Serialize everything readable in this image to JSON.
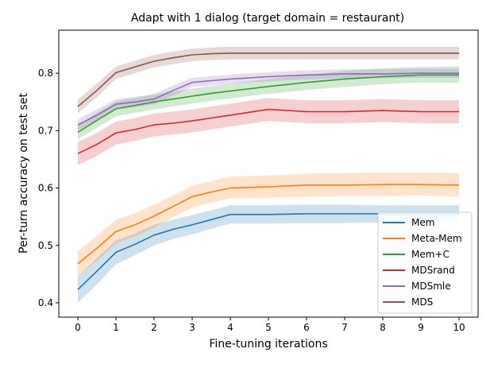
{
  "chart_data": {
    "type": "line",
    "title": "Adapt with 1 dialog (target domain = restaurant)",
    "xlabel": "Fine-tuning iterations",
    "ylabel": "Per-turn accuracy on test set",
    "xlim": [
      -0.5,
      10.5
    ],
    "ylim": [
      0.375,
      0.875
    ],
    "xticks": [
      0,
      1,
      2,
      3,
      4,
      5,
      6,
      7,
      8,
      9,
      10
    ],
    "yticks": [
      0.4,
      0.5,
      0.6,
      0.7,
      0.8
    ],
    "ytick_labels": [
      "0.4",
      "0.5",
      "0.6",
      "0.7",
      "0.8"
    ],
    "grid": false,
    "legend_position": "lower-right",
    "x": [
      0,
      0.5,
      1,
      1.5,
      2,
      2.5,
      3,
      3.5,
      4,
      5,
      6,
      7,
      8,
      9,
      10
    ],
    "series": [
      {
        "name": "Mem",
        "color": "#1f77b4",
        "values": [
          0.423,
          0.455,
          0.488,
          0.502,
          0.518,
          0.528,
          0.536,
          0.545,
          0.554,
          0.554,
          0.555,
          0.555,
          0.555,
          0.555,
          0.555
        ],
        "lower": [
          0.4,
          0.432,
          0.467,
          0.483,
          0.5,
          0.511,
          0.519,
          0.529,
          0.538,
          0.538,
          0.539,
          0.539,
          0.54,
          0.54,
          0.54
        ],
        "upper": [
          0.446,
          0.478,
          0.509,
          0.521,
          0.536,
          0.545,
          0.553,
          0.561,
          0.57,
          0.57,
          0.571,
          0.571,
          0.57,
          0.57,
          0.57
        ]
      },
      {
        "name": "Meta-Mem",
        "color": "#ff7f0e",
        "values": [
          0.468,
          0.495,
          0.524,
          0.536,
          0.551,
          0.568,
          0.585,
          0.593,
          0.6,
          0.602,
          0.605,
          0.605,
          0.606,
          0.606,
          0.605
        ],
        "lower": [
          0.446,
          0.473,
          0.503,
          0.516,
          0.531,
          0.549,
          0.566,
          0.575,
          0.582,
          0.583,
          0.585,
          0.586,
          0.586,
          0.587,
          0.585
        ],
        "upper": [
          0.49,
          0.517,
          0.545,
          0.556,
          0.571,
          0.587,
          0.604,
          0.612,
          0.62,
          0.622,
          0.625,
          0.626,
          0.627,
          0.627,
          0.626
        ]
      },
      {
        "name": "Mem+C",
        "color": "#2ca02c",
        "values": [
          0.697,
          0.718,
          0.738,
          0.744,
          0.75,
          0.755,
          0.76,
          0.765,
          0.769,
          0.777,
          0.784,
          0.79,
          0.794,
          0.797,
          0.797
        ],
        "lower": [
          0.685,
          0.705,
          0.725,
          0.731,
          0.737,
          0.742,
          0.747,
          0.752,
          0.756,
          0.764,
          0.771,
          0.776,
          0.781,
          0.784,
          0.783
        ],
        "upper": [
          0.709,
          0.731,
          0.751,
          0.757,
          0.763,
          0.768,
          0.773,
          0.778,
          0.782,
          0.79,
          0.797,
          0.804,
          0.809,
          0.811,
          0.812
        ]
      },
      {
        "name": "MDSrand",
        "color": "#d62728",
        "values": [
          0.66,
          0.676,
          0.696,
          0.702,
          0.71,
          0.713,
          0.717,
          0.722,
          0.727,
          0.737,
          0.733,
          0.733,
          0.735,
          0.733,
          0.733
        ],
        "lower": [
          0.64,
          0.656,
          0.676,
          0.682,
          0.69,
          0.693,
          0.697,
          0.702,
          0.707,
          0.717,
          0.713,
          0.713,
          0.715,
          0.713,
          0.713
        ],
        "upper": [
          0.68,
          0.696,
          0.716,
          0.722,
          0.73,
          0.733,
          0.737,
          0.742,
          0.747,
          0.757,
          0.753,
          0.753,
          0.755,
          0.753,
          0.753
        ]
      },
      {
        "name": "MDSmle",
        "color": "#9467bd",
        "values": [
          0.71,
          0.727,
          0.746,
          0.75,
          0.755,
          0.77,
          0.784,
          0.787,
          0.79,
          0.794,
          0.797,
          0.799,
          0.799,
          0.8,
          0.8
        ],
        "lower": [
          0.7,
          0.717,
          0.737,
          0.741,
          0.746,
          0.761,
          0.776,
          0.779,
          0.782,
          0.786,
          0.789,
          0.791,
          0.791,
          0.792,
          0.792
        ],
        "upper": [
          0.72,
          0.737,
          0.755,
          0.759,
          0.764,
          0.779,
          0.792,
          0.795,
          0.798,
          0.802,
          0.805,
          0.807,
          0.807,
          0.808,
          0.808
        ]
      },
      {
        "name": "MDS",
        "color": "#8c564b",
        "values": [
          0.742,
          0.77,
          0.801,
          0.811,
          0.821,
          0.827,
          0.832,
          0.834,
          0.835,
          0.835,
          0.835,
          0.835,
          0.835,
          0.835,
          0.835
        ],
        "lower": [
          0.73,
          0.758,
          0.79,
          0.8,
          0.81,
          0.816,
          0.821,
          0.823,
          0.824,
          0.824,
          0.824,
          0.824,
          0.824,
          0.824,
          0.824
        ],
        "upper": [
          0.754,
          0.782,
          0.812,
          0.822,
          0.832,
          0.838,
          0.843,
          0.845,
          0.846,
          0.846,
          0.846,
          0.846,
          0.846,
          0.846,
          0.846
        ]
      }
    ]
  }
}
